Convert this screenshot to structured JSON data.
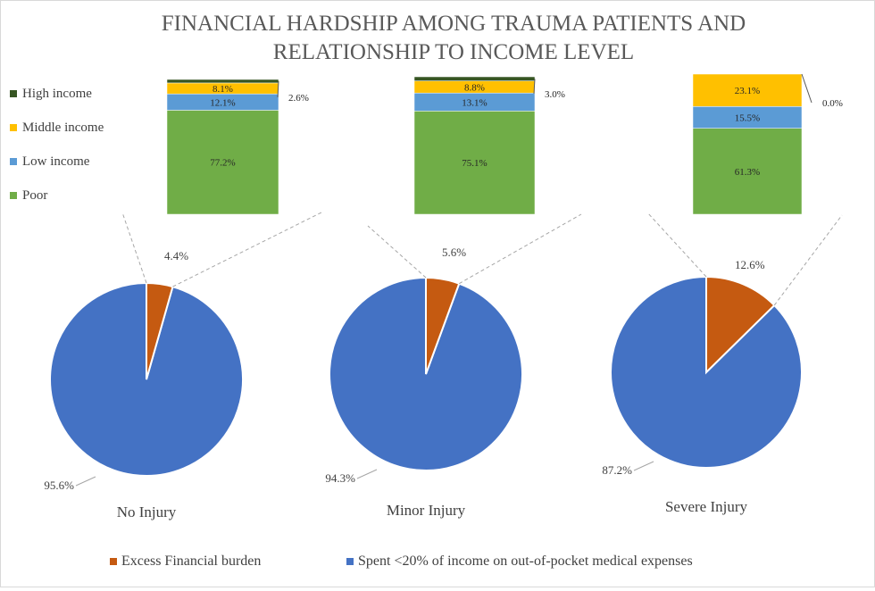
{
  "chart_data": {
    "type": "pie",
    "title_lines": [
      "FINANCIAL HARDSHIP AMONG TRAUMA PATIENTS AND",
      "RELATIONSHIP TO INCOME LEVEL"
    ],
    "colors": {
      "excess": "#C55A11",
      "spent": "#4472C4",
      "poor": "#70AD47",
      "low": "#5B9BD5",
      "middle": "#FFC000",
      "high": "#375623"
    },
    "income_legend": [
      {
        "name": "High income",
        "color": "#375623"
      },
      {
        "name": "Middle income",
        "color": "#FFC000"
      },
      {
        "name": "Low income",
        "color": "#5B9BD5"
      },
      {
        "name": "Poor",
        "color": "#70AD47"
      }
    ],
    "bottom_legend": [
      {
        "name": "Excess Financial burden",
        "color": "#C55A11"
      },
      {
        "name": "Spent <20% of income on out-of-pocket medical expenses",
        "color": "#4472C4"
      }
    ],
    "charts": [
      {
        "category": "No Injury",
        "pie": {
          "excess": 4.4,
          "spent": 95.6
        },
        "pie_labels": {
          "excess": "4.4%",
          "spent": "95.6%"
        },
        "breakdown": [
          {
            "name": "Poor",
            "value": 77.2,
            "label": "77.2%"
          },
          {
            "name": "Low income",
            "value": 12.1,
            "label": "12.1%"
          },
          {
            "name": "Middle income",
            "value": 8.1,
            "label": "8.1%"
          },
          {
            "name": "High income",
            "value": 2.6,
            "label": "2.6%"
          }
        ]
      },
      {
        "category": "Minor Injury",
        "pie": {
          "excess": 5.6,
          "spent": 94.3
        },
        "pie_labels": {
          "excess": "5.6%",
          "spent": "94.3%"
        },
        "breakdown": [
          {
            "name": "Poor",
            "value": 75.1,
            "label": "75.1%"
          },
          {
            "name": "Low income",
            "value": 13.1,
            "label": "13.1%"
          },
          {
            "name": "Middle income",
            "value": 8.8,
            "label": "8.8%"
          },
          {
            "name": "High income",
            "value": 3.0,
            "label": "3.0%"
          }
        ]
      },
      {
        "category": "Severe Injury",
        "pie": {
          "excess": 12.6,
          "spent": 87.2
        },
        "pie_labels": {
          "excess": "12.6%",
          "spent": "87.2%"
        },
        "breakdown": [
          {
            "name": "Poor",
            "value": 61.3,
            "label": "61.3%"
          },
          {
            "name": "Low income",
            "value": 15.5,
            "label": "15.5%"
          },
          {
            "name": "Middle income",
            "value": 23.1,
            "label": "23.1%"
          },
          {
            "name": "High income",
            "value": 0.0,
            "label": "0.0%"
          }
        ]
      }
    ]
  }
}
